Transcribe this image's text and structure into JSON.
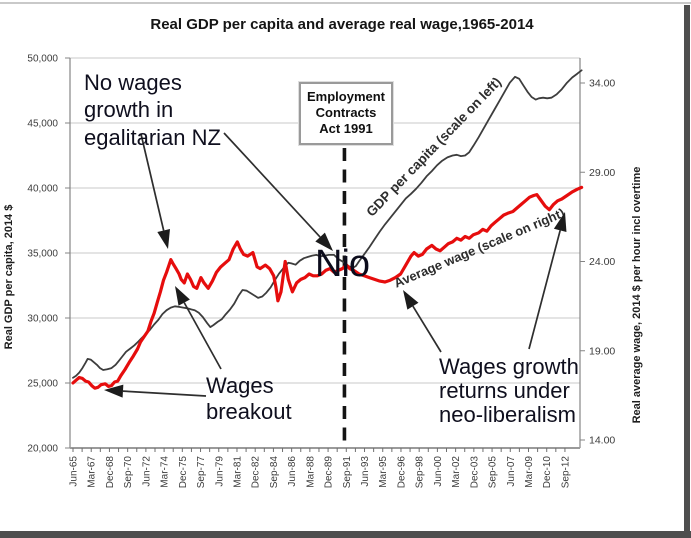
{
  "chart_data": {
    "type": "line",
    "title": "Real GDP per capita and average real wage,1965-2014",
    "grid": "horizontal",
    "legend": "none",
    "x_axis": {
      "labels": [
        "Jun-65",
        "Mar-67",
        "Dec-68",
        "Sep-70",
        "Jun-72",
        "Mar-74",
        "Dec-75",
        "Sep-77",
        "Jun-79",
        "Mar-81",
        "Dec-82",
        "Sep-84",
        "Jun-86",
        "Mar-88",
        "Dec-89",
        "Sep-91",
        "Jun-93",
        "Mar-95",
        "Dec-96",
        "Sep-98",
        "Jun-00",
        "Mar-02",
        "Dec-03",
        "Sep-05",
        "Jun-07",
        "Mar-09",
        "Dec-10",
        "Sep-12"
      ],
      "range_years": [
        1965.5,
        2014.5
      ]
    },
    "y_left": {
      "label": "Real GDP per capita, 2014 $",
      "tick_labels": [
        "50,000",
        "45,000",
        "40,000",
        "35,000",
        "30,000",
        "25,000",
        "20,000"
      ],
      "tick_values": [
        50000,
        45000,
        40000,
        35000,
        30000,
        25000,
        20000
      ],
      "min": 20000,
      "max": 50000
    },
    "y_right": {
      "label": "Real average wage, 2014 $ per hour incl overtime",
      "tick_labels": [
        "34.00",
        "29.00",
        "24.00",
        "19.00",
        "14.00"
      ],
      "tick_values": [
        34,
        29,
        24,
        19,
        14
      ],
      "min": 14,
      "max": 34
    },
    "series": [
      {
        "name": "GDP per capita",
        "axis": "left",
        "color": "#3d3d3d",
        "width": 1.8,
        "inline_label": "GDP per capita (scale on left)",
        "points": [
          [
            1965.5,
            25400
          ],
          [
            1965.8,
            25550
          ],
          [
            1966.1,
            25800
          ],
          [
            1966.4,
            26150
          ],
          [
            1966.7,
            26550
          ],
          [
            1966.9,
            26850
          ],
          [
            1967.2,
            26800
          ],
          [
            1967.5,
            26600
          ],
          [
            1967.8,
            26400
          ],
          [
            1968.1,
            26150
          ],
          [
            1968.4,
            26000
          ],
          [
            1968.8,
            26050
          ],
          [
            1969.2,
            26150
          ],
          [
            1969.6,
            26400
          ],
          [
            1969.9,
            26700
          ],
          [
            1970.2,
            27000
          ],
          [
            1970.6,
            27400
          ],
          [
            1971.0,
            27650
          ],
          [
            1971.4,
            27900
          ],
          [
            1971.8,
            28200
          ],
          [
            1972.1,
            28450
          ],
          [
            1972.5,
            28770
          ],
          [
            1972.9,
            29100
          ],
          [
            1973.3,
            29500
          ],
          [
            1973.7,
            29850
          ],
          [
            1974.1,
            30300
          ],
          [
            1974.5,
            30600
          ],
          [
            1974.9,
            30800
          ],
          [
            1975.3,
            30900
          ],
          [
            1975.7,
            30850
          ],
          [
            1976.1,
            30800
          ],
          [
            1976.5,
            30750
          ],
          [
            1976.9,
            30650
          ],
          [
            1977.2,
            30600
          ],
          [
            1977.6,
            30400
          ],
          [
            1978.0,
            30050
          ],
          [
            1978.4,
            29600
          ],
          [
            1978.7,
            29300
          ],
          [
            1979.0,
            29450
          ],
          [
            1979.4,
            29700
          ],
          [
            1979.8,
            29900
          ],
          [
            1980.2,
            30300
          ],
          [
            1980.6,
            30650
          ],
          [
            1981.0,
            31100
          ],
          [
            1981.4,
            31700
          ],
          [
            1981.8,
            32150
          ],
          [
            1982.2,
            32100
          ],
          [
            1982.6,
            31900
          ],
          [
            1983.0,
            31700
          ],
          [
            1983.3,
            31550
          ],
          [
            1983.7,
            31650
          ],
          [
            1984.1,
            31950
          ],
          [
            1984.5,
            32350
          ],
          [
            1984.9,
            32900
          ],
          [
            1985.3,
            33400
          ],
          [
            1985.8,
            33900
          ],
          [
            1986.2,
            34250
          ],
          [
            1986.5,
            34200
          ],
          [
            1986.9,
            34100
          ],
          [
            1987.3,
            34400
          ],
          [
            1987.7,
            34600
          ],
          [
            1988.1,
            34700
          ],
          [
            1988.5,
            34800
          ],
          [
            1988.9,
            34850
          ],
          [
            1989.3,
            34750
          ],
          [
            1989.7,
            34800
          ],
          [
            1990.1,
            34850
          ],
          [
            1990.6,
            34850
          ],
          [
            1991.0,
            34550
          ],
          [
            1991.3,
            34400
          ],
          [
            1991.6,
            34250
          ],
          [
            1991.9,
            34050
          ],
          [
            1992.2,
            33900
          ],
          [
            1992.4,
            33850
          ],
          [
            1992.7,
            34000
          ],
          [
            1993.0,
            34350
          ],
          [
            1993.5,
            34900
          ],
          [
            1994.0,
            35450
          ],
          [
            1994.5,
            36050
          ],
          [
            1995.0,
            36650
          ],
          [
            1995.5,
            37200
          ],
          [
            1996.0,
            37700
          ],
          [
            1996.5,
            38200
          ],
          [
            1997.0,
            38700
          ],
          [
            1997.5,
            39200
          ],
          [
            1998.0,
            39550
          ],
          [
            1998.5,
            39950
          ],
          [
            1999.0,
            40400
          ],
          [
            1999.5,
            40900
          ],
          [
            2000.0,
            41300
          ],
          [
            2000.5,
            41750
          ],
          [
            2001.0,
            42100
          ],
          [
            2001.5,
            42350
          ],
          [
            2002.0,
            42500
          ],
          [
            2002.4,
            42550
          ],
          [
            2002.8,
            42450
          ],
          [
            2003.2,
            42500
          ],
          [
            2003.6,
            42750
          ],
          [
            2004.0,
            43250
          ],
          [
            2004.5,
            43900
          ],
          [
            2005.0,
            44600
          ],
          [
            2005.5,
            45300
          ],
          [
            2006.0,
            46000
          ],
          [
            2006.5,
            46700
          ],
          [
            2007.0,
            47400
          ],
          [
            2007.5,
            48100
          ],
          [
            2008.0,
            48550
          ],
          [
            2008.4,
            48400
          ],
          [
            2008.8,
            47900
          ],
          [
            2009.2,
            47400
          ],
          [
            2009.6,
            47000
          ],
          [
            2010.0,
            46800
          ],
          [
            2010.3,
            46900
          ],
          [
            2010.7,
            46950
          ],
          [
            2011.1,
            46900
          ],
          [
            2011.5,
            46950
          ],
          [
            2012.0,
            47200
          ],
          [
            2012.5,
            47600
          ],
          [
            2013.0,
            48100
          ],
          [
            2013.5,
            48500
          ],
          [
            2014.0,
            48800
          ],
          [
            2014.4,
            49050
          ]
        ]
      },
      {
        "name": "Average wage",
        "axis": "right",
        "color": "#e60d0d",
        "width": 3.2,
        "inline_label": "Average wage (scale on right)",
        "points": [
          [
            1965.5,
            17.2
          ],
          [
            1965.8,
            17.35
          ],
          [
            1966.1,
            17.5
          ],
          [
            1966.4,
            17.45
          ],
          [
            1966.7,
            17.3
          ],
          [
            1967.0,
            17.25
          ],
          [
            1967.3,
            17.05
          ],
          [
            1967.6,
            16.9
          ],
          [
            1967.9,
            16.95
          ],
          [
            1968.2,
            17.1
          ],
          [
            1968.6,
            17.15
          ],
          [
            1968.9,
            17.0
          ],
          [
            1969.2,
            17.05
          ],
          [
            1969.5,
            17.25
          ],
          [
            1969.8,
            17.3
          ],
          [
            1970.1,
            17.6
          ],
          [
            1970.5,
            17.95
          ],
          [
            1970.9,
            18.35
          ],
          [
            1971.3,
            18.7
          ],
          [
            1971.7,
            19.1
          ],
          [
            1972.0,
            19.5
          ],
          [
            1972.4,
            19.85
          ],
          [
            1972.7,
            20.1
          ],
          [
            1973.0,
            20.65
          ],
          [
            1973.3,
            21.1
          ],
          [
            1973.6,
            21.7
          ],
          [
            1973.9,
            22.3
          ],
          [
            1974.2,
            22.95
          ],
          [
            1974.5,
            23.4
          ],
          [
            1974.7,
            23.75
          ],
          [
            1974.9,
            24.1
          ],
          [
            1975.1,
            23.9
          ],
          [
            1975.4,
            23.6
          ],
          [
            1975.7,
            23.3
          ],
          [
            1975.9,
            23.0
          ],
          [
            1976.2,
            22.8
          ],
          [
            1976.5,
            23.3
          ],
          [
            1976.8,
            23.0
          ],
          [
            1977.1,
            22.6
          ],
          [
            1977.4,
            22.5
          ],
          [
            1977.8,
            23.1
          ],
          [
            1978.1,
            22.8
          ],
          [
            1978.5,
            22.5
          ],
          [
            1978.9,
            22.9
          ],
          [
            1979.3,
            23.4
          ],
          [
            1979.7,
            23.7
          ],
          [
            1980.1,
            23.9
          ],
          [
            1980.5,
            24.1
          ],
          [
            1980.9,
            24.7
          ],
          [
            1981.3,
            25.1
          ],
          [
            1981.6,
            24.7
          ],
          [
            1981.9,
            24.4
          ],
          [
            1982.3,
            24.3
          ],
          [
            1982.8,
            24.5
          ],
          [
            1983.2,
            23.7
          ],
          [
            1983.5,
            23.6
          ],
          [
            1984.0,
            23.8
          ],
          [
            1984.4,
            23.6
          ],
          [
            1984.8,
            23.2
          ],
          [
            1985.0,
            22.6
          ],
          [
            1985.2,
            21.8
          ],
          [
            1985.5,
            22.3
          ],
          [
            1985.9,
            24.0
          ],
          [
            1986.2,
            23.0
          ],
          [
            1986.6,
            22.3
          ],
          [
            1987.0,
            22.8
          ],
          [
            1987.4,
            23.0
          ],
          [
            1987.8,
            23.1
          ],
          [
            1988.2,
            23.3
          ],
          [
            1988.6,
            23.2
          ],
          [
            1989.0,
            23.2
          ],
          [
            1989.4,
            23.3
          ],
          [
            1989.8,
            23.5
          ],
          [
            1990.2,
            23.6
          ],
          [
            1990.6,
            23.4
          ],
          [
            1991.0,
            23.5
          ],
          [
            1991.4,
            23.6
          ],
          [
            1991.8,
            23.8
          ],
          [
            1992.1,
            23.6
          ],
          [
            1992.5,
            23.5
          ],
          [
            1993.0,
            23.3
          ],
          [
            1993.5,
            23.2
          ],
          [
            1994.0,
            23.1
          ],
          [
            1994.5,
            23.0
          ],
          [
            1995.0,
            22.9
          ],
          [
            1995.5,
            22.85
          ],
          [
            1996.0,
            22.95
          ],
          [
            1996.5,
            23.1
          ],
          [
            1997.0,
            23.3
          ],
          [
            1997.5,
            23.8
          ],
          [
            1998.0,
            24.3
          ],
          [
            1998.3,
            24.5
          ],
          [
            1998.7,
            24.3
          ],
          [
            1999.1,
            24.4
          ],
          [
            1999.5,
            24.7
          ],
          [
            2000.0,
            24.9
          ],
          [
            2000.4,
            24.7
          ],
          [
            2000.8,
            24.6
          ],
          [
            2001.2,
            24.8
          ],
          [
            2001.6,
            25.0
          ],
          [
            2002.0,
            25.1
          ],
          [
            2002.4,
            25.3
          ],
          [
            2002.8,
            25.2
          ],
          [
            2003.2,
            25.4
          ],
          [
            2003.6,
            25.3
          ],
          [
            2004.0,
            25.5
          ],
          [
            2004.5,
            25.6
          ],
          [
            2004.9,
            25.8
          ],
          [
            2005.3,
            25.7
          ],
          [
            2005.7,
            26.0
          ],
          [
            2006.1,
            26.2
          ],
          [
            2006.5,
            26.4
          ],
          [
            2006.9,
            26.6
          ],
          [
            2007.3,
            26.7
          ],
          [
            2007.8,
            26.8
          ],
          [
            2008.2,
            27.0
          ],
          [
            2008.6,
            27.2
          ],
          [
            2009.0,
            27.4
          ],
          [
            2009.4,
            27.6
          ],
          [
            2009.8,
            27.7
          ],
          [
            2010.1,
            27.75
          ],
          [
            2010.4,
            27.5
          ],
          [
            2010.9,
            27.1
          ],
          [
            2011.3,
            26.9
          ],
          [
            2011.7,
            27.2
          ],
          [
            2012.1,
            27.4
          ],
          [
            2012.5,
            27.5
          ],
          [
            2013.0,
            27.7
          ],
          [
            2013.5,
            27.9
          ],
          [
            2014.0,
            28.05
          ],
          [
            2014.4,
            28.15
          ]
        ]
      }
    ],
    "event_line": {
      "year": 1991.6,
      "style": "dashed",
      "color": "#141414"
    },
    "annotations": {
      "no_wages": {
        "line1": "No wages",
        "line2": "growth in",
        "line3": "egalitarian NZ"
      },
      "eca_box": {
        "line1": "Employment",
        "line2": "Contracts",
        "line3": "Act 1991"
      },
      "nio": {
        "text": "Nio"
      },
      "breakout": {
        "line1": "Wages",
        "line2": "breakout"
      },
      "growth": {
        "line1": "Wages growth",
        "line2": "returns under",
        "line3": "neo-liberalism"
      },
      "arrows": [
        {
          "from": [
            141,
            134
          ],
          "to": [
            168,
            249
          ]
        },
        {
          "from": [
            224,
            133
          ],
          "to": [
            333,
            251
          ]
        },
        {
          "from": [
            221,
            369
          ],
          "to": [
            175,
            286
          ]
        },
        {
          "from": [
            206,
            396
          ],
          "to": [
            104,
            390
          ]
        },
        {
          "from": [
            441,
            352
          ],
          "to": [
            403,
            290
          ]
        },
        {
          "from": [
            529,
            349
          ],
          "to": [
            565,
            212
          ]
        }
      ]
    }
  }
}
